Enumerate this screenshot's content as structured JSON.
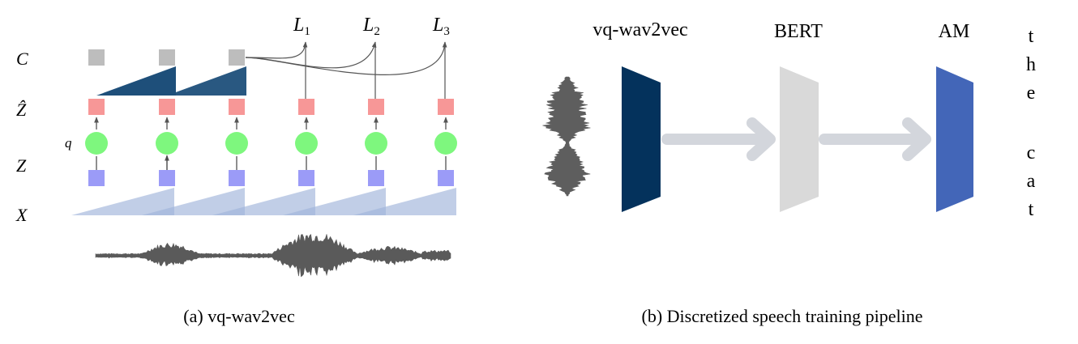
{
  "panel_a": {
    "caption": "(a) vq-wav2vec",
    "row_labels": {
      "c": "C",
      "zhat": "Ẑ",
      "z": "Z",
      "x": "X",
      "q": "q"
    },
    "losses": [
      {
        "base": "L",
        "sub": "1"
      },
      {
        "base": "L",
        "sub": "2"
      },
      {
        "base": "L",
        "sub": "3"
      }
    ],
    "colors": {
      "context_box": "#bdbdbd",
      "zhat_box": "#f79797",
      "quantizer_node": "#7ef77e",
      "z_box": "#9b9bf7",
      "context_wedge": "#1e4f7a",
      "encoder_wedge": "#b0c2e0",
      "waveform": "#555555"
    }
  },
  "panel_b": {
    "caption": "(b) Discretized speech training pipeline",
    "stages": [
      "vq-wav2vec",
      "BERT",
      "AM"
    ],
    "output_letters": [
      "t",
      "h",
      "e",
      "",
      "c",
      "a",
      "t"
    ],
    "colors": {
      "vq_wav2vec": "#04325c",
      "bert": "#d9d9d9",
      "am": "#4366b8",
      "arrow": "#d3d6dc"
    }
  }
}
